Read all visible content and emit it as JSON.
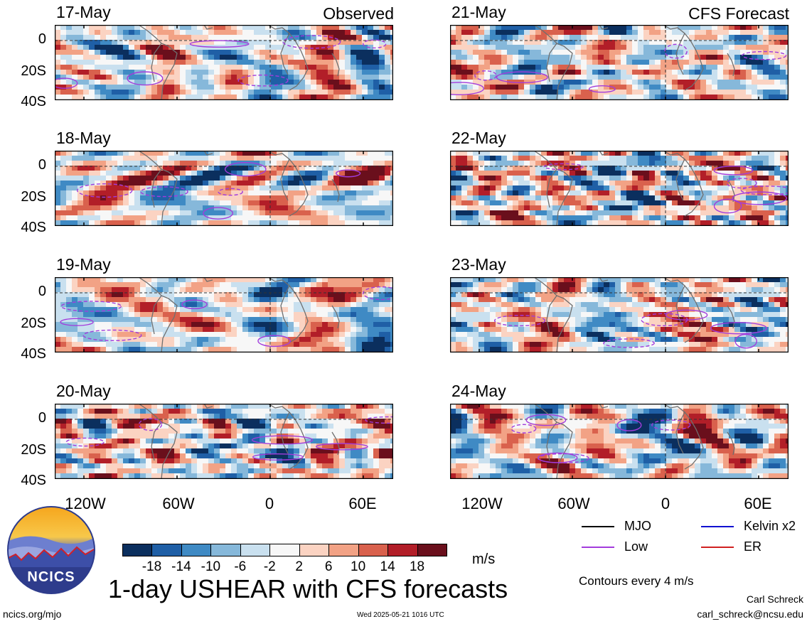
{
  "header": {
    "observed_label": "Observed",
    "forecast_label": "CFS Forecast"
  },
  "panels": {
    "observed": [
      {
        "date": "17-May"
      },
      {
        "date": "18-May"
      },
      {
        "date": "19-May"
      },
      {
        "date": "20-May"
      }
    ],
    "forecast": [
      {
        "date": "21-May"
      },
      {
        "date": "22-May"
      },
      {
        "date": "23-May"
      },
      {
        "date": "24-May"
      }
    ]
  },
  "axes": {
    "y_ticks": [
      "0",
      "20S",
      "40S"
    ],
    "x_ticks": [
      "120W",
      "60W",
      "0",
      "60E"
    ]
  },
  "colorbar": {
    "labels": [
      "-18",
      "-14",
      "-10",
      "-6",
      "-2",
      "2",
      "6",
      "10",
      "14",
      "18"
    ],
    "colors": [
      "#0b2f5e",
      "#1f5fa6",
      "#3f8ac4",
      "#86b8da",
      "#c9e0ef",
      "#f7f7f7",
      "#fbd3c2",
      "#f2a285",
      "#d9614d",
      "#b21e28",
      "#6a0f1c"
    ],
    "unit": "m/s"
  },
  "legend": {
    "items": [
      {
        "label": "MJO",
        "color": "#000000"
      },
      {
        "label": "Kelvin x2",
        "color": "#1010d0"
      },
      {
        "label": "Low",
        "color": "#a23cdc"
      },
      {
        "label": "ER",
        "color": "#d02020"
      }
    ],
    "contour_note": "Contours every 4 m/s"
  },
  "footer": {
    "main_title": "1-day USHEAR with CFS forecasts",
    "logo_text": "NCICS",
    "url": "ncics.org/mjo",
    "timestamp": "Wed 2025-05-21 1016 UTC",
    "author": "Carl Schreck",
    "email": "carl_schreck@ncsu.edu"
  },
  "chart_data": {
    "type": "heatmap",
    "variable": "1-day USHEAR",
    "unit": "m/s",
    "x_range": [
      "~140W",
      "~85E"
    ],
    "y_range": [
      "10N",
      "40S"
    ],
    "x_ticks": [
      "120W",
      "60W",
      "0",
      "60E"
    ],
    "y_ticks": [
      "0",
      "20S",
      "40S"
    ],
    "color_levels": [
      -18,
      -14,
      -10,
      -6,
      -2,
      2,
      6,
      10,
      14,
      18
    ],
    "panels_observed": [
      "17-May",
      "18-May",
      "19-May",
      "20-May"
    ],
    "panels_forecast": [
      "21-May",
      "22-May",
      "23-May",
      "24-May"
    ],
    "contour_interval": 4,
    "overlays": [
      "MJO",
      "Kelvin x2",
      "Low",
      "ER"
    ]
  }
}
